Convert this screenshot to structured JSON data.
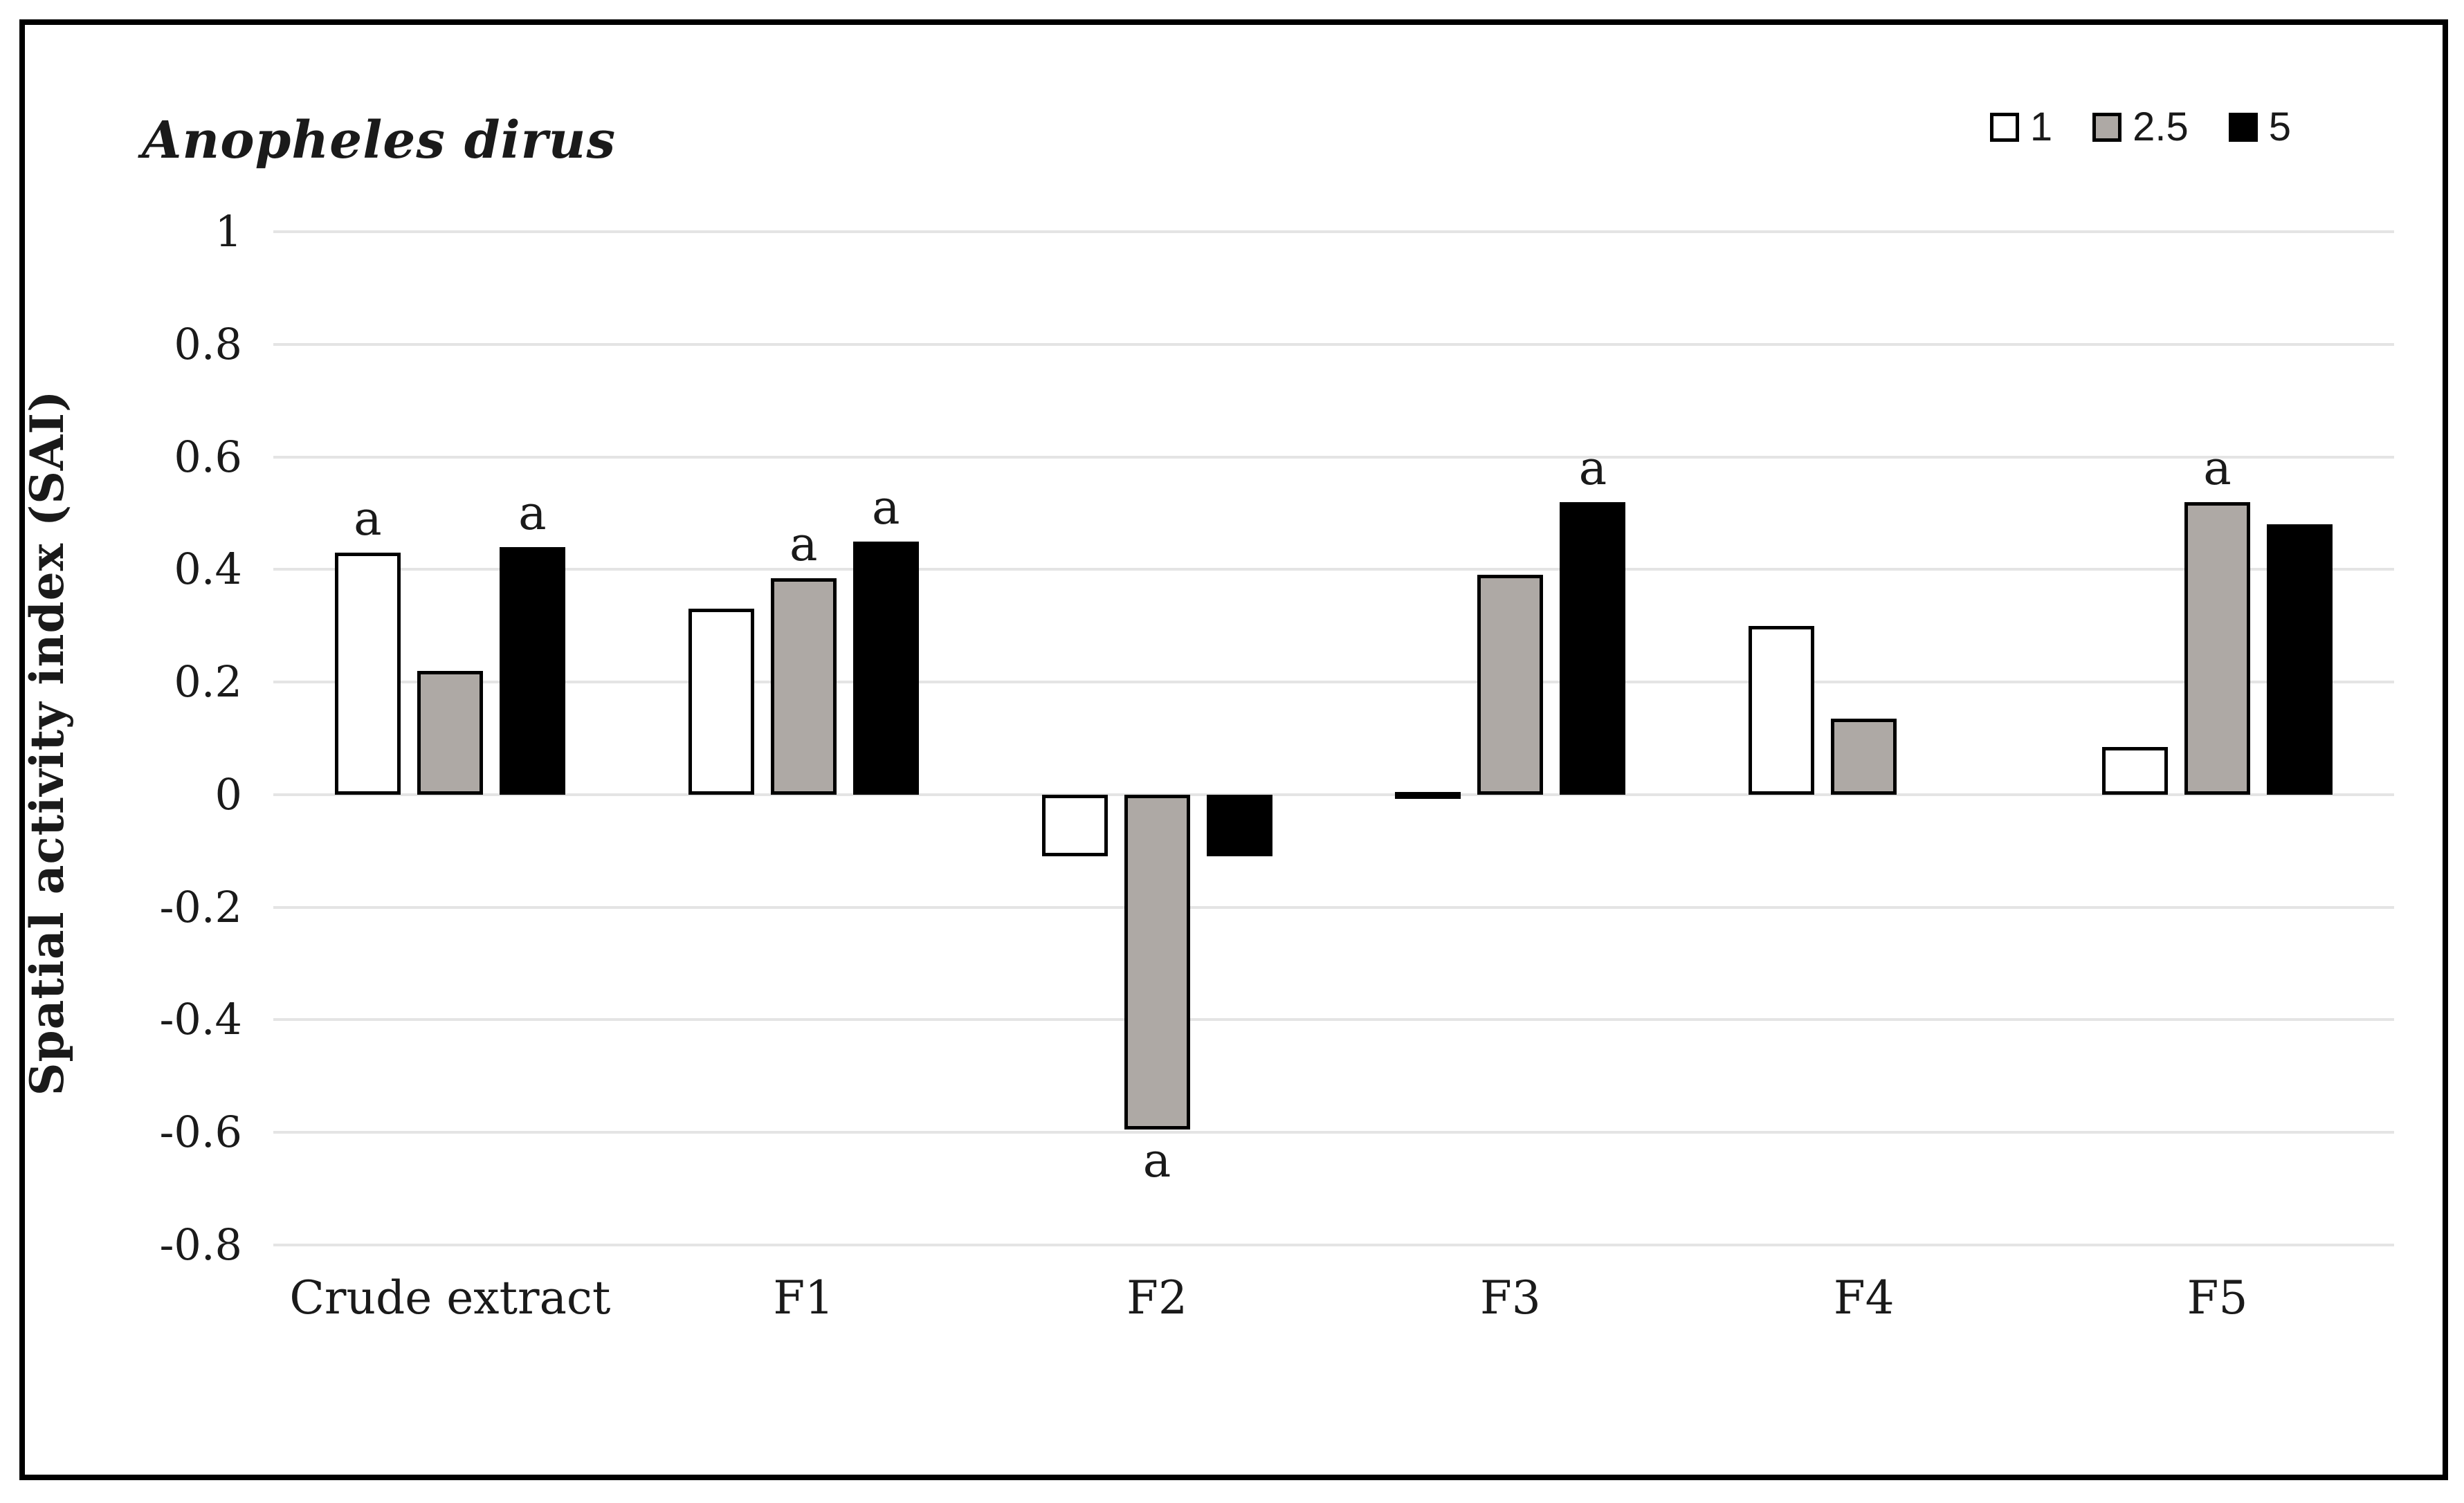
{
  "chart_data": {
    "type": "bar",
    "title": "Anopheles dirus",
    "ylabel": "Spatial activity index (SAI)",
    "xlabel": "",
    "ylim": [
      -0.8,
      1.0
    ],
    "ytick_step": 0.2,
    "ytick_labels": [
      "1",
      "0.8",
      "0.6",
      "0.4",
      "0.2",
      "0",
      "-0.2",
      "-0.4",
      "-0.6",
      "-0.8"
    ],
    "grid": true,
    "legend_position": "top-right",
    "categories": [
      "Crude extract",
      "F1",
      "F2",
      "F3",
      "F4",
      "F5"
    ],
    "series": [
      {
        "name": "1",
        "color": "#ffffff",
        "values": [
          0.43,
          0.33,
          -0.11,
          0.005,
          0.3,
          0.085
        ],
        "annotations": [
          "a",
          null,
          null,
          null,
          null,
          null
        ]
      },
      {
        "name": "2.5",
        "color": "#aeא9a5",
        "values": [
          0.22,
          0.385,
          -0.595,
          0.39,
          0.135,
          0.52
        ],
        "annotations": [
          null,
          "a",
          "a",
          null,
          null,
          "a"
        ]
      },
      {
        "name": "5",
        "color": "#000000",
        "values": [
          0.44,
          0.45,
          -0.11,
          0.52,
          null,
          0.48
        ],
        "annotations": [
          "a",
          "a",
          null,
          "a",
          null,
          null
        ]
      }
    ],
    "colors": {
      "series_fill_1": "#ffffff",
      "series_fill_2_5": "#aea9a5",
      "series_fill_5": "#000000",
      "bar_edge": "#000000",
      "gridline": "#e4e4e4",
      "text": "#1a1a1a",
      "frame_border": "#000000"
    },
    "significance_marker": "a"
  }
}
